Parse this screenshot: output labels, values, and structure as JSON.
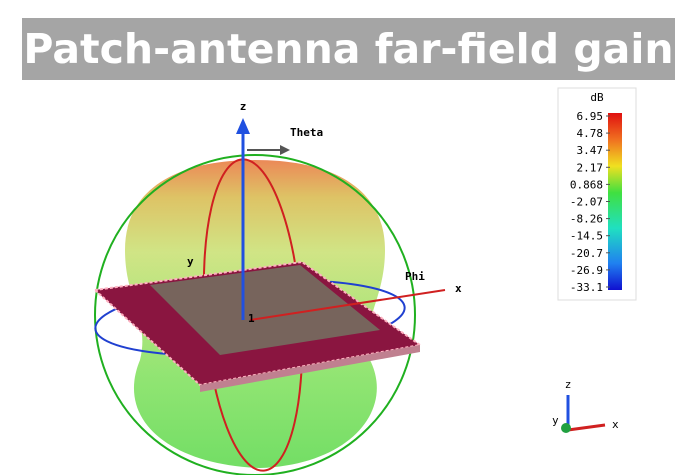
{
  "header": {
    "title": "Patch-antenna far-field gain"
  },
  "colorbar": {
    "unit": "dB",
    "ticks": [
      6.95,
      4.78,
      3.47,
      2.17,
      0.868,
      -2.07,
      -8.26,
      -14.5,
      -20.7,
      -26.9,
      -33.1
    ]
  },
  "axes": {
    "z": "z",
    "theta": "Theta",
    "phi": "Phi",
    "x": "x",
    "y": "y",
    "origin": "1"
  },
  "triad": {
    "z": "z",
    "x": "x",
    "y": "y"
  }
}
